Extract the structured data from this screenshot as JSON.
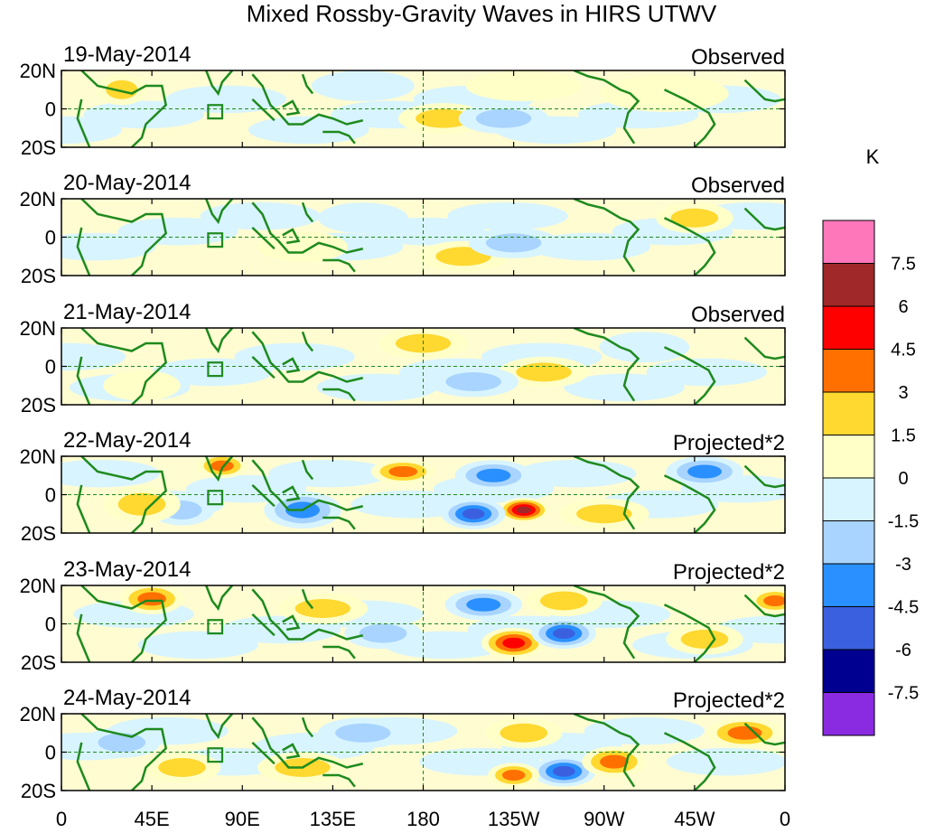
{
  "chart_data": {
    "type": "heatmap",
    "title": "Mixed Rossby-Gravity Waves in HIRS UTWV",
    "units": "K",
    "lon_ticks": [
      "0",
      "45E",
      "90E",
      "135E",
      "180",
      "135W",
      "90W",
      "45W",
      "0"
    ],
    "lon_range": [
      0,
      360
    ],
    "lat_ticks": [
      "20N",
      "0",
      "20S"
    ],
    "lat_range": [
      -20,
      20
    ],
    "legend_placement": "right",
    "colorbar": {
      "colors": [
        "#ff77bb",
        "#a02828",
        "#ff0000",
        "#ff7000",
        "#ffd830",
        "#ffffc8",
        "#d8f4ff",
        "#a8d4ff",
        "#2a90ff",
        "#3a60e0",
        "#000090",
        "#8a2be2"
      ],
      "labels": [
        "7.5",
        "6",
        "4.5",
        "3",
        "1.5",
        "0",
        "-1.5",
        "-3",
        "-4.5",
        "-6",
        "-7.5"
      ]
    },
    "panels": [
      {
        "date": "19-May-2014",
        "label": "Observed",
        "anomalies": [
          {
            "lon": 190,
            "lat": -5,
            "slon": 14,
            "slat": 5,
            "value": 1.8
          },
          {
            "lon": 220,
            "lat": -5,
            "slon": 14,
            "slat": 5,
            "value": -1.7
          },
          {
            "lon": 30,
            "lat": 10,
            "slon": 8,
            "slat": 5,
            "value": 1.6
          },
          {
            "lon": 150,
            "lat": 12,
            "slon": 16,
            "slat": 5,
            "value": -1.4
          },
          {
            "lon": 230,
            "lat": 12,
            "slon": 18,
            "slat": 5,
            "value": 1.3
          },
          {
            "lon": 300,
            "lat": 8,
            "slon": 20,
            "slat": 6,
            "value": 1.2
          }
        ]
      },
      {
        "date": "20-May-2014",
        "label": "Observed",
        "anomalies": [
          {
            "lon": 200,
            "lat": -10,
            "slon": 14,
            "slat": 5,
            "value": 1.8
          },
          {
            "lon": 225,
            "lat": -3,
            "slon": 14,
            "slat": 5,
            "value": -1.7
          },
          {
            "lon": 315,
            "lat": 10,
            "slon": 12,
            "slat": 5,
            "value": 1.7
          },
          {
            "lon": 120,
            "lat": -5,
            "slon": 14,
            "slat": 5,
            "value": 1.5
          },
          {
            "lon": 150,
            "lat": 10,
            "slon": 14,
            "slat": 5,
            "value": -1.4
          }
        ]
      },
      {
        "date": "21-May-2014",
        "label": "Observed",
        "anomalies": [
          {
            "lon": 240,
            "lat": -3,
            "slon": 14,
            "slat": 5,
            "value": 1.8
          },
          {
            "lon": 205,
            "lat": -8,
            "slon": 14,
            "slat": 5,
            "value": -1.7
          },
          {
            "lon": 180,
            "lat": 12,
            "slon": 14,
            "slat": 5,
            "value": 1.7
          },
          {
            "lon": 40,
            "lat": -10,
            "slon": 12,
            "slat": 5,
            "value": 1.4
          },
          {
            "lon": 290,
            "lat": 10,
            "slon": 14,
            "slat": 5,
            "value": -1.4
          }
        ]
      },
      {
        "date": "22-May-2014",
        "label": "Projected*2",
        "anomalies": [
          {
            "lon": 230,
            "lat": -8,
            "slon": 8,
            "slat": 4,
            "value": 6.5
          },
          {
            "lon": 205,
            "lat": -10,
            "slon": 10,
            "slat": 5,
            "value": -4.6
          },
          {
            "lon": 215,
            "lat": 10,
            "slon": 12,
            "slat": 5,
            "value": -3.2
          },
          {
            "lon": 170,
            "lat": 12,
            "slon": 10,
            "slat": 4,
            "value": 4.0
          },
          {
            "lon": 320,
            "lat": 12,
            "slon": 12,
            "slat": 5,
            "value": -4.2
          },
          {
            "lon": 120,
            "lat": -8,
            "slon": 12,
            "slat": 6,
            "value": -3.6
          },
          {
            "lon": 270,
            "lat": -10,
            "slon": 14,
            "slat": 5,
            "value": 2.6
          },
          {
            "lon": 80,
            "lat": 15,
            "slon": 8,
            "slat": 4,
            "value": 3.6
          },
          {
            "lon": 60,
            "lat": -8,
            "slon": 10,
            "slat": 5,
            "value": -2.6
          },
          {
            "lon": 40,
            "lat": -5,
            "slon": 12,
            "slat": 6,
            "value": 2.4
          }
        ]
      },
      {
        "date": "23-May-2014",
        "label": "Projected*2",
        "anomalies": [
          {
            "lon": 225,
            "lat": -10,
            "slon": 10,
            "slat": 5,
            "value": 5.0
          },
          {
            "lon": 250,
            "lat": -5,
            "slon": 10,
            "slat": 5,
            "value": -5.6
          },
          {
            "lon": 210,
            "lat": 10,
            "slon": 12,
            "slat": 5,
            "value": -3.4
          },
          {
            "lon": 250,
            "lat": 12,
            "slon": 12,
            "slat": 5,
            "value": 2.8
          },
          {
            "lon": 355,
            "lat": 12,
            "slon": 8,
            "slat": 4,
            "value": 4.2
          },
          {
            "lon": 45,
            "lat": 13,
            "slon": 10,
            "slat": 5,
            "value": 3.2
          },
          {
            "lon": 160,
            "lat": -5,
            "slon": 12,
            "slat": 5,
            "value": -2.6
          },
          {
            "lon": 130,
            "lat": 8,
            "slon": 14,
            "slat": 5,
            "value": 2.2
          },
          {
            "lon": 320,
            "lat": -8,
            "slon": 12,
            "slat": 5,
            "value": 2.2
          }
        ]
      },
      {
        "date": "24-May-2014",
        "label": "Projected*2",
        "anomalies": [
          {
            "lon": 250,
            "lat": -10,
            "slon": 10,
            "slat": 5,
            "value": -4.6
          },
          {
            "lon": 225,
            "lat": -12,
            "slon": 8,
            "slat": 4,
            "value": 4.2
          },
          {
            "lon": 275,
            "lat": -5,
            "slon": 10,
            "slat": 5,
            "value": 4.0
          },
          {
            "lon": 340,
            "lat": 10,
            "slon": 12,
            "slat": 5,
            "value": 4.4
          },
          {
            "lon": 230,
            "lat": 10,
            "slon": 12,
            "slat": 5,
            "value": 2.8
          },
          {
            "lon": 150,
            "lat": 10,
            "slon": 14,
            "slat": 5,
            "value": -2.4
          },
          {
            "lon": 120,
            "lat": -8,
            "slon": 14,
            "slat": 5,
            "value": 2.6
          },
          {
            "lon": 60,
            "lat": -8,
            "slon": 12,
            "slat": 5,
            "value": 2.4
          },
          {
            "lon": 30,
            "lat": 5,
            "slon": 12,
            "slat": 5,
            "value": -2.2
          }
        ]
      }
    ]
  }
}
